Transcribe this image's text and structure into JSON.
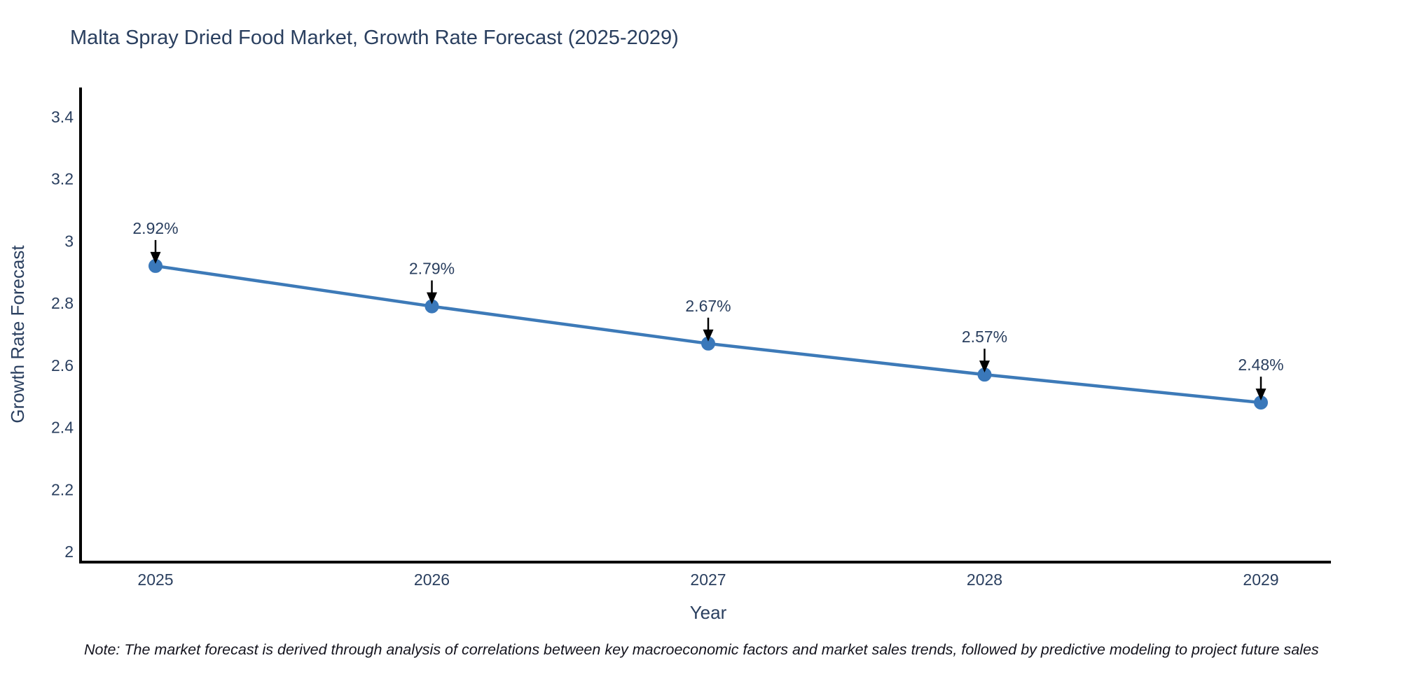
{
  "title": "Malta Spray Dried Food Market, Growth Rate Forecast (2025-2029)",
  "note": "Note: The market forecast is derived through analysis of correlations between key macroeconomic factors and market sales trends, followed by predictive modeling to project future sales",
  "chart_data": {
    "type": "line",
    "title": "Malta Spray Dried Food Market, Growth Rate Forecast (2025-2029)",
    "xlabel": "Year",
    "ylabel": "Growth Rate Forecast",
    "x": [
      2025,
      2026,
      2027,
      2028,
      2029
    ],
    "x_tick_labels": [
      "2025",
      "2026",
      "2027",
      "2028",
      "2029"
    ],
    "values": [
      2.92,
      2.79,
      2.67,
      2.57,
      2.48
    ],
    "point_labels": [
      "2.92%",
      "2.79%",
      "2.67%",
      "2.57%",
      "2.48%"
    ],
    "ylim": [
      2,
      3.4
    ],
    "yticks": [
      2,
      2.2,
      2.4,
      2.6,
      2.8,
      3,
      3.2,
      3.4
    ],
    "ytick_labels": [
      "2",
      "2.2",
      "2.4",
      "2.6",
      "2.8",
      "3",
      "3.2",
      "3.4"
    ],
    "grid": false,
    "legend": "none",
    "annotation_arrows": true,
    "colors": {
      "line": "#3d7ab8",
      "marker": "#3a78ba",
      "axis": "#000000",
      "text": "#2a3f5f",
      "annotation_text": "#2a3f5f",
      "arrow": "#000000",
      "note_text": "#14141e",
      "background": "#ffffff"
    }
  }
}
